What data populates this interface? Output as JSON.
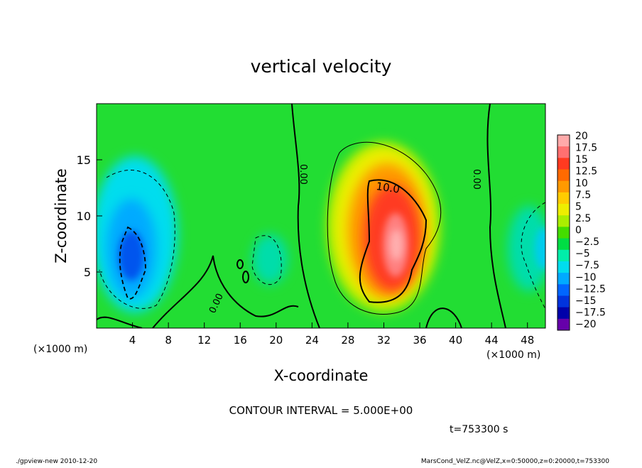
{
  "chart_data": {
    "type": "heatmap",
    "title": "vertical velocity",
    "xlabel": "X-coordinate",
    "ylabel": "Z-coordinate",
    "x_unit": "(×1000 m)",
    "y_unit": "(×1000 m)",
    "xlim": [
      0,
      50
    ],
    "ylim": [
      0,
      20
    ],
    "x_ticks": [
      4,
      8,
      12,
      16,
      20,
      24,
      28,
      32,
      36,
      40,
      44,
      48
    ],
    "y_ticks": [
      5,
      10,
      15
    ],
    "colorbar": {
      "labels": [
        "20",
        "17.5",
        "15",
        "12.5",
        "10",
        "7.5",
        "5",
        "2.5",
        "0",
        "−2.5",
        "−5",
        "−7.5",
        "−10",
        "−12.5",
        "−15",
        "−17.5",
        "−20"
      ],
      "colors": [
        "#ffaaaa",
        "#ff7070",
        "#ff3a20",
        "#ff6a00",
        "#ff9a00",
        "#ffcc00",
        "#eeee00",
        "#aaee00",
        "#44dd00",
        "#00dd44",
        "#00eeaa",
        "#00ddee",
        "#00aaff",
        "#0066ff",
        "#0033dd",
        "#0000aa",
        "#6600aa"
      ]
    },
    "contour_labels": [
      "0.00",
      "0.00",
      "0.00",
      "10.0"
    ],
    "contour_interval": "CONTOUR INTERVAL = 5.000E+00",
    "time": "t=753300 s"
  },
  "footer": {
    "left": "./gpview-new  2010-12-20",
    "right": "MarsCond_VelZ.nc@VelZ,x=0:50000,z=0:20000,t=753300"
  }
}
